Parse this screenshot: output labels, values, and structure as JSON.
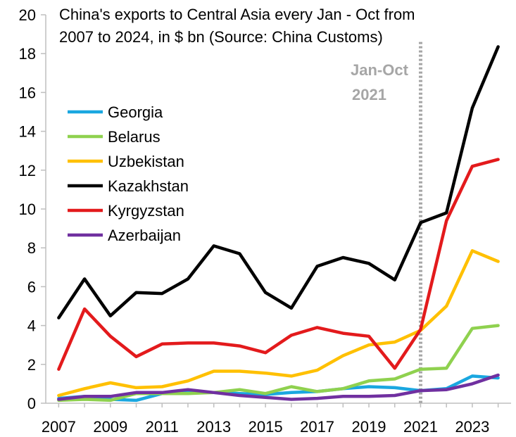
{
  "chart_data": {
    "type": "line",
    "title_lines": [
      "China's exports to Central Asia every Jan - Oct from",
      "2007 to 2024, in $ bn (Source: China Customs)"
    ],
    "xlabel": "",
    "ylabel": "",
    "x": [
      2007,
      2008,
      2009,
      2010,
      2011,
      2012,
      2013,
      2014,
      2015,
      2016,
      2017,
      2018,
      2019,
      2020,
      2021,
      2022,
      2023,
      2024
    ],
    "xlim": [
      2006.5,
      2024.5
    ],
    "ylim": [
      0,
      20
    ],
    "yticks": [
      0,
      2,
      4,
      6,
      8,
      10,
      12,
      14,
      16,
      18,
      20
    ],
    "xticks": [
      2007,
      2009,
      2011,
      2013,
      2015,
      2017,
      2019,
      2021,
      2023
    ],
    "grid": false,
    "legend_position": "upper-left",
    "series": [
      {
        "name": "Georgia",
        "color": "#1aa7e0",
        "values": [
          0.25,
          0.35,
          0.2,
          0.15,
          0.5,
          0.55,
          0.55,
          0.5,
          0.45,
          0.55,
          0.6,
          0.75,
          0.85,
          0.8,
          0.65,
          0.75,
          1.4,
          1.3
        ]
      },
      {
        "name": "Belarus",
        "color": "#8fd14f",
        "values": [
          0.15,
          0.2,
          0.15,
          0.5,
          0.5,
          0.5,
          0.55,
          0.7,
          0.5,
          0.85,
          0.6,
          0.75,
          1.15,
          1.25,
          1.75,
          1.8,
          3.85,
          4.0
        ]
      },
      {
        "name": "Uzbekistan",
        "color": "#ffc000",
        "values": [
          0.4,
          0.75,
          1.05,
          0.8,
          0.85,
          1.15,
          1.65,
          1.65,
          1.55,
          1.4,
          1.7,
          2.45,
          3.0,
          3.15,
          3.75,
          5.0,
          7.85,
          7.3
        ]
      },
      {
        "name": "Kazakhstan",
        "color": "#000000",
        "values": [
          4.4,
          6.4,
          4.5,
          5.7,
          5.65,
          6.4,
          8.1,
          7.7,
          5.7,
          4.9,
          7.05,
          7.5,
          7.2,
          6.35,
          9.3,
          9.8,
          15.2,
          18.35
        ]
      },
      {
        "name": "Kyrgyzstan",
        "color": "#e31a1c",
        "values": [
          1.75,
          4.85,
          3.45,
          2.4,
          3.05,
          3.1,
          3.1,
          2.95,
          2.6,
          3.5,
          3.9,
          3.6,
          3.45,
          1.8,
          3.8,
          9.4,
          12.2,
          12.55
        ]
      },
      {
        "name": "Azerbaijan",
        "color": "#7030a0",
        "values": [
          0.2,
          0.35,
          0.35,
          0.55,
          0.55,
          0.7,
          0.55,
          0.4,
          0.3,
          0.2,
          0.25,
          0.35,
          0.35,
          0.4,
          0.65,
          0.7,
          1.0,
          1.45
        ]
      }
    ],
    "vline": {
      "x": 2021,
      "color": "#a6a6a6",
      "style": "dotted"
    },
    "annotation_lines": [
      "Jan-Oct",
      "2021"
    ]
  }
}
